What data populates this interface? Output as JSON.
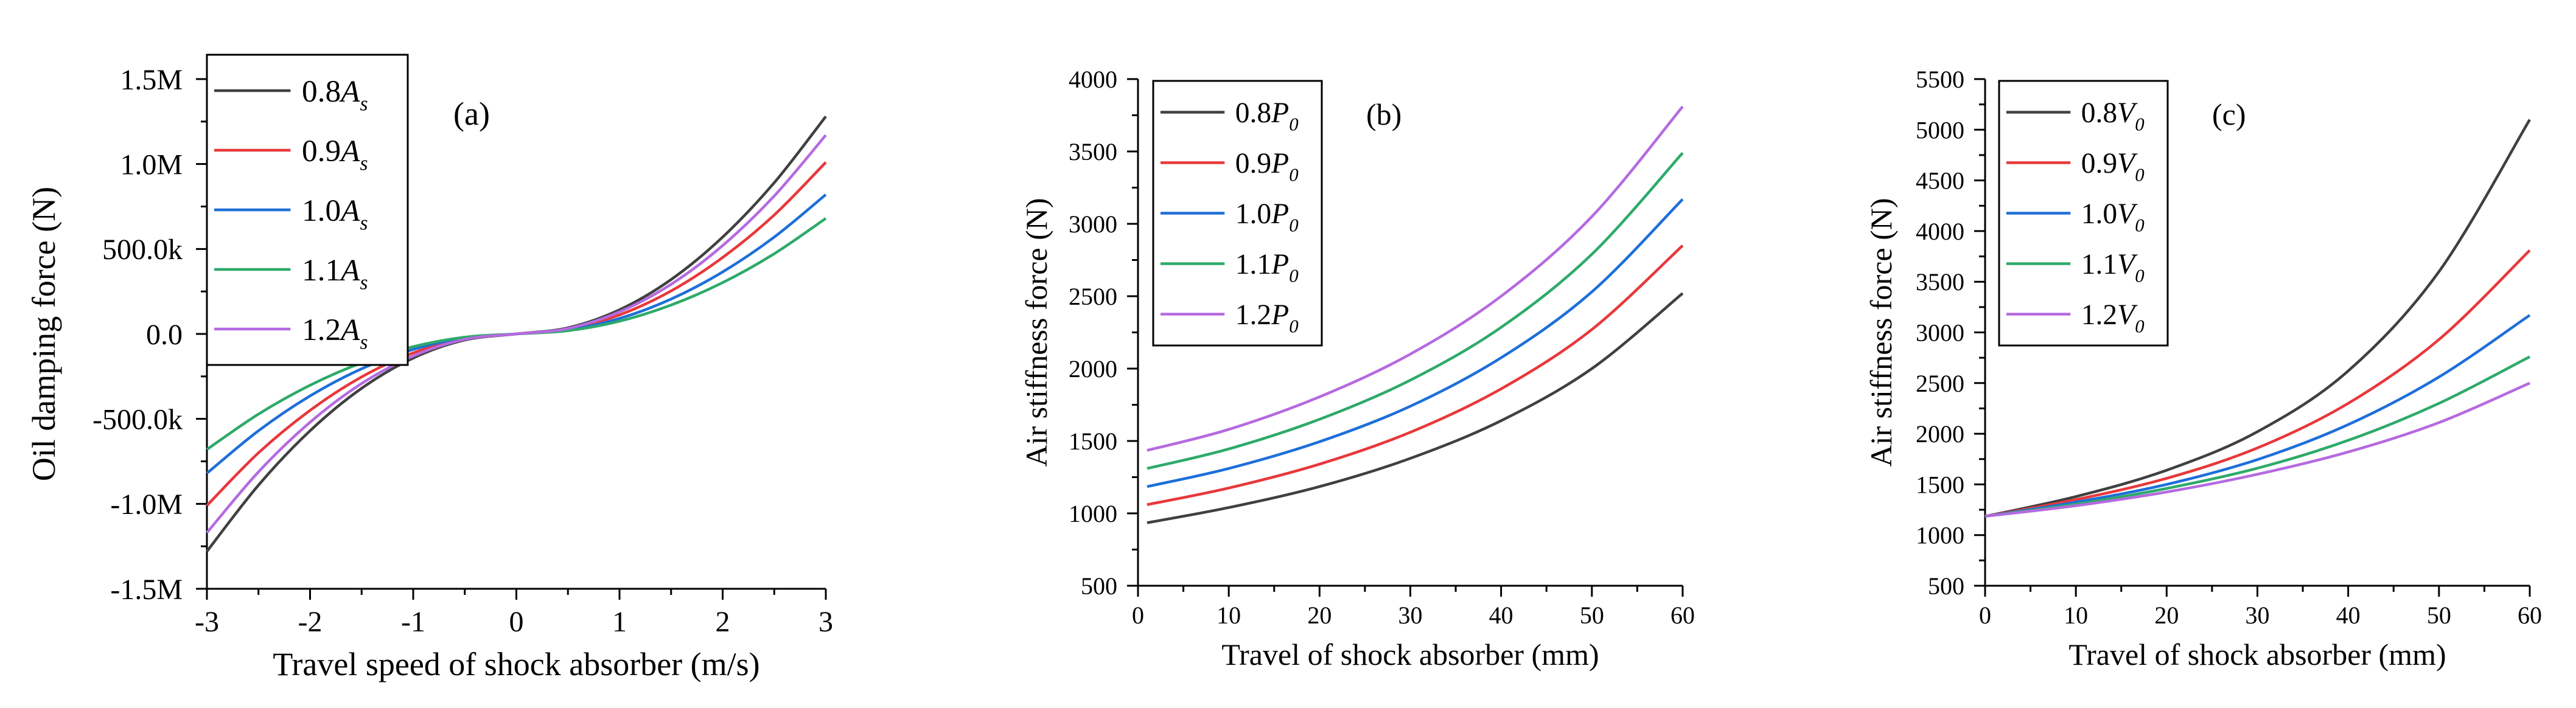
{
  "chart_data": [
    {
      "id": "a",
      "type": "line",
      "panel_label": "(a)",
      "xlabel": "Travel speed of shock absorber (m/s)",
      "ylabel": "Oil damping force (N)",
      "xlim": [
        -3,
        3
      ],
      "ylim": [
        -1500000,
        1500000
      ],
      "xticks": [
        {
          "value": -3,
          "label": "-3"
        },
        {
          "value": -2,
          "label": "-2"
        },
        {
          "value": -1,
          "label": "-1"
        },
        {
          "value": 0,
          "label": "0"
        },
        {
          "value": 1,
          "label": "1"
        },
        {
          "value": 2,
          "label": "2"
        },
        {
          "value": 3,
          "label": "3"
        }
      ],
      "yticks": [
        {
          "value": -1500000,
          "label": "-1.5M"
        },
        {
          "value": -1000000,
          "label": "-1.0M"
        },
        {
          "value": -500000,
          "label": "-500.0k"
        },
        {
          "value": 0,
          "label": "0.0"
        },
        {
          "value": 500000,
          "label": "500.0k"
        },
        {
          "value": 1000000,
          "label": "1.0M"
        },
        {
          "value": 1500000,
          "label": "1.5M"
        }
      ],
      "legend_position": "top-left",
      "x": [
        -3,
        -2.5,
        -2,
        -1.5,
        -1,
        -0.5,
        0,
        0.5,
        1,
        1.5,
        2,
        2.5,
        3
      ],
      "series": [
        {
          "name": "0.8",
          "sub": "s",
          "symbol": "A",
          "color": "#404040",
          "values": [
            -1280000,
            -890000,
            -570000,
            -320000,
            -142000,
            -36000,
            0,
            36000,
            142000,
            320000,
            570000,
            890000,
            1280000
          ]
        },
        {
          "name": "0.9",
          "sub": "s",
          "symbol": "A",
          "color": "#e8383b",
          "values": [
            -1010000,
            -700000,
            -450000,
            -253000,
            -112000,
            -28000,
            0,
            28000,
            112000,
            253000,
            450000,
            700000,
            1010000
          ]
        },
        {
          "name": "1.0",
          "sub": "s",
          "symbol": "A",
          "color": "#1e6fd9",
          "values": [
            -820000,
            -570000,
            -365000,
            -205000,
            -91000,
            -23000,
            0,
            23000,
            91000,
            205000,
            365000,
            570000,
            820000
          ]
        },
        {
          "name": "1.1",
          "sub": "s",
          "symbol": "A",
          "color": "#2eaa6a",
          "values": [
            -680000,
            -472000,
            -302000,
            -170000,
            -75000,
            -19000,
            0,
            19000,
            75000,
            170000,
            302000,
            472000,
            680000
          ]
        },
        {
          "name": "1.2",
          "sub": "s",
          "symbol": "A",
          "color": "#b56ae0",
          "values": [
            -1170000,
            -812000,
            -520000,
            -292000,
            -130000,
            -32000,
            0,
            32000,
            130000,
            292000,
            520000,
            812000,
            1170000
          ]
        }
      ]
    },
    {
      "id": "b",
      "type": "line",
      "panel_label": "(b)",
      "xlabel": "Travel of shock absorber (mm)",
      "ylabel": "Air stiffness force (N)",
      "xlim": [
        0,
        60
      ],
      "ylim": [
        500,
        4000
      ],
      "xticks": [
        {
          "value": 0,
          "label": "0"
        },
        {
          "value": 10,
          "label": "10"
        },
        {
          "value": 20,
          "label": "20"
        },
        {
          "value": 30,
          "label": "30"
        },
        {
          "value": 40,
          "label": "40"
        },
        {
          "value": 50,
          "label": "50"
        },
        {
          "value": 60,
          "label": "60"
        }
      ],
      "yticks": [
        {
          "value": 500,
          "label": "500"
        },
        {
          "value": 1000,
          "label": "1000"
        },
        {
          "value": 1500,
          "label": "1500"
        },
        {
          "value": 2000,
          "label": "2000"
        },
        {
          "value": 2500,
          "label": "2500"
        },
        {
          "value": 3000,
          "label": "3000"
        },
        {
          "value": 3500,
          "label": "3500"
        },
        {
          "value": 4000,
          "label": "4000"
        }
      ],
      "legend_position": "top-left",
      "x": [
        1,
        10,
        20,
        30,
        40,
        50,
        60
      ],
      "series": [
        {
          "name": "0.8",
          "sub": "0",
          "symbol": "P",
          "color": "#404040",
          "values": [
            935,
            1040,
            1185,
            1380,
            1640,
            2000,
            2520
          ]
        },
        {
          "name": "0.9",
          "sub": "0",
          "symbol": "P",
          "color": "#e8383b",
          "values": [
            1060,
            1175,
            1340,
            1560,
            1860,
            2270,
            2850
          ]
        },
        {
          "name": "1.0",
          "sub": "0",
          "symbol": "P",
          "color": "#1e6fd9",
          "values": [
            1185,
            1310,
            1495,
            1740,
            2075,
            2530,
            3170
          ]
        },
        {
          "name": "1.1",
          "sub": "0",
          "symbol": "P",
          "color": "#2eaa6a",
          "values": [
            1310,
            1445,
            1650,
            1920,
            2285,
            2790,
            3490
          ]
        },
        {
          "name": "1.2",
          "sub": "0",
          "symbol": "P",
          "color": "#b56ae0",
          "values": [
            1435,
            1580,
            1805,
            2100,
            2500,
            3050,
            3810
          ]
        }
      ]
    },
    {
      "id": "c",
      "type": "line",
      "panel_label": "(c)",
      "xlabel": "Travel of shock absorber (mm)",
      "ylabel": "Air stiffness force (N)",
      "xlim": [
        0,
        60
      ],
      "ylim": [
        500,
        5500
      ],
      "xticks": [
        {
          "value": 0,
          "label": "0"
        },
        {
          "value": 10,
          "label": "10"
        },
        {
          "value": 20,
          "label": "20"
        },
        {
          "value": 30,
          "label": "30"
        },
        {
          "value": 40,
          "label": "40"
        },
        {
          "value": 50,
          "label": "50"
        },
        {
          "value": 60,
          "label": "60"
        }
      ],
      "yticks": [
        {
          "value": 500,
          "label": "500"
        },
        {
          "value": 1000,
          "label": "1000"
        },
        {
          "value": 1500,
          "label": "1500"
        },
        {
          "value": 2000,
          "label": "2000"
        },
        {
          "value": 2500,
          "label": "2500"
        },
        {
          "value": 3000,
          "label": "3000"
        },
        {
          "value": 3500,
          "label": "3500"
        },
        {
          "value": 4000,
          "label": "4000"
        },
        {
          "value": 4500,
          "label": "4500"
        },
        {
          "value": 5000,
          "label": "5000"
        },
        {
          "value": 5500,
          "label": "5500"
        }
      ],
      "legend_position": "top-left",
      "x": [
        0,
        10,
        20,
        30,
        40,
        50,
        60
      ],
      "series": [
        {
          "name": "0.8",
          "sub": "0",
          "symbol": "V",
          "color": "#404040",
          "values": [
            1185,
            1380,
            1640,
            2020,
            2620,
            3600,
            5100
          ]
        },
        {
          "name": "0.9",
          "sub": "0",
          "symbol": "V",
          "color": "#e8383b",
          "values": [
            1185,
            1350,
            1560,
            1860,
            2300,
            2930,
            3810
          ]
        },
        {
          "name": "1.0",
          "sub": "0",
          "symbol": "V",
          "color": "#1e6fd9",
          "values": [
            1185,
            1325,
            1500,
            1745,
            2090,
            2560,
            3170
          ]
        },
        {
          "name": "1.1",
          "sub": "0",
          "symbol": "V",
          "color": "#2eaa6a",
          "values": [
            1185,
            1305,
            1460,
            1660,
            1935,
            2300,
            2760
          ]
        },
        {
          "name": "1.2",
          "sub": "0",
          "symbol": "V",
          "color": "#b56ae0",
          "values": [
            1185,
            1290,
            1425,
            1600,
            1820,
            2110,
            2500
          ]
        }
      ]
    }
  ]
}
